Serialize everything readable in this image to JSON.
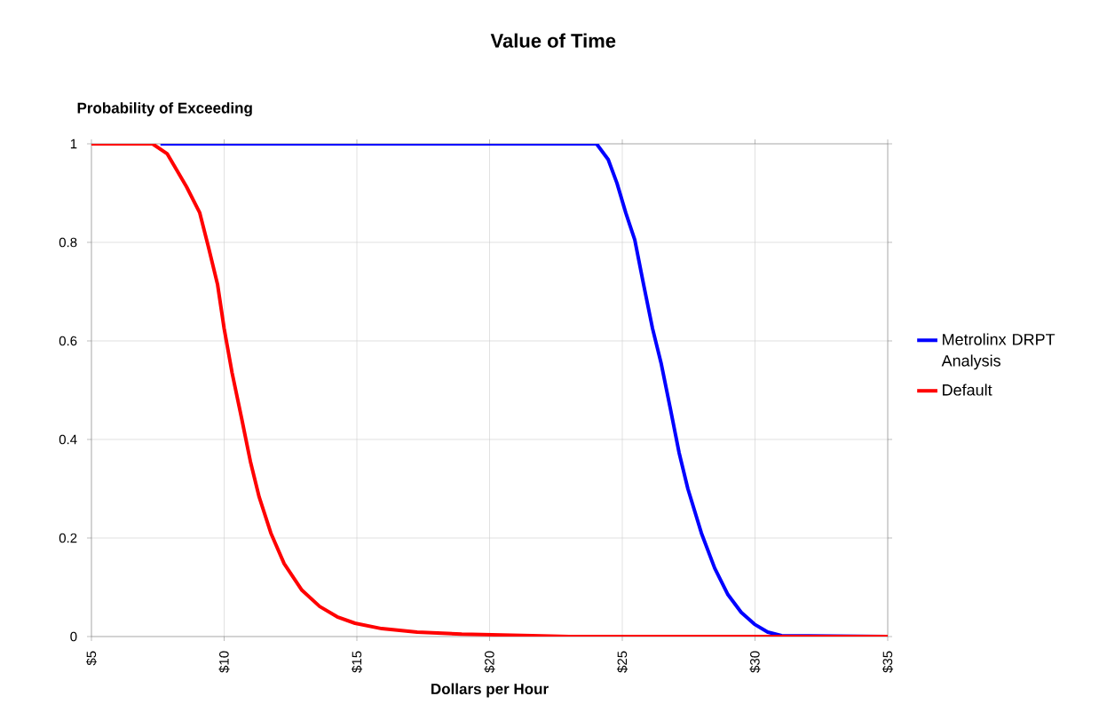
{
  "chart_data": {
    "type": "line",
    "title": "Value of Time",
    "xlabel": "Dollars per Hour",
    "ylabel": "Probability of Exceeding",
    "xlim": [
      5,
      35
    ],
    "xticks": [
      {
        "value": 5,
        "label": "$5"
      },
      {
        "value": 10,
        "label": "$10"
      },
      {
        "value": 15,
        "label": "$15"
      },
      {
        "value": 20,
        "label": "$20"
      },
      {
        "value": 25,
        "label": "$25"
      },
      {
        "value": 30,
        "label": "$30"
      },
      {
        "value": 35,
        "label": "$35"
      }
    ],
    "ylim": [
      0,
      1
    ],
    "yticks": [
      0,
      0.2,
      0.4,
      0.6,
      0.8,
      1
    ],
    "grid": true,
    "legend": "right",
    "marker": "none",
    "line_style": "solid",
    "series": [
      {
        "name": "Metrolinx DRPT Analysis",
        "color": "#0000ff",
        "x": [
          7.6,
          24.03,
          24.47,
          24.8,
          25.13,
          25.47,
          25.8,
          26.14,
          26.47,
          26.81,
          27.14,
          27.47,
          27.98,
          28.48,
          28.98,
          29.48,
          29.98,
          30.48,
          31.0,
          35
        ],
        "values": [
          1,
          1,
          0.968,
          0.92,
          0.86,
          0.805,
          0.715,
          0.625,
          0.553,
          0.463,
          0.373,
          0.3,
          0.21,
          0.139,
          0.085,
          0.049,
          0.025,
          0.009,
          0.002,
          0
        ]
      },
      {
        "name": "Default",
        "color": "#ff0000",
        "x": [
          5,
          7.3,
          7.85,
          8.58,
          9.08,
          9.41,
          9.75,
          10.0,
          10.3,
          10.65,
          10.99,
          11.32,
          11.76,
          12.26,
          12.93,
          13.6,
          14.26,
          14.93,
          15.94,
          17.27,
          18.95,
          21.6,
          23,
          35
        ],
        "values": [
          1,
          1,
          0.98,
          0.913,
          0.86,
          0.79,
          0.715,
          0.625,
          0.535,
          0.445,
          0.355,
          0.283,
          0.21,
          0.148,
          0.094,
          0.061,
          0.04,
          0.027,
          0.016,
          0.009,
          0.005,
          0.002,
          0,
          0
        ]
      }
    ]
  }
}
